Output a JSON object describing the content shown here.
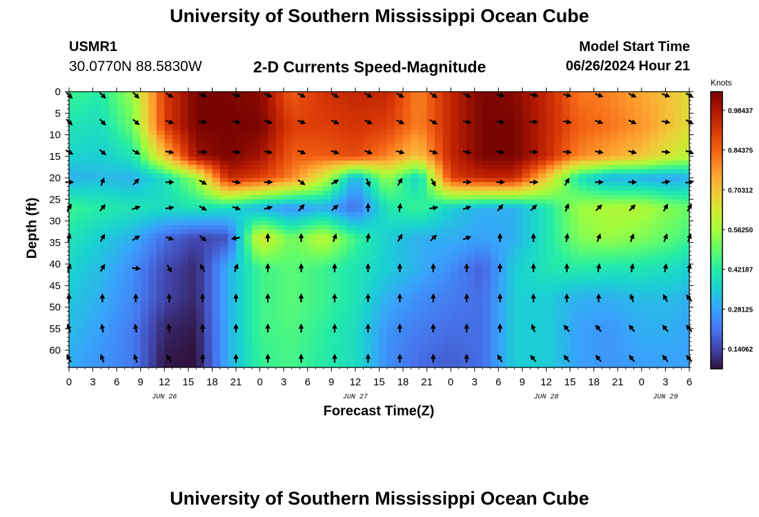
{
  "header": {
    "title": "University of Southern Mississippi Ocean Cube",
    "station": "USMR1",
    "coordinates": "30.0770N  88.5830W",
    "product": "2-D Currents Speed-Magnitude",
    "model_start_label": "Model Start Time",
    "model_start_value": "06/26/2024 Hour 21"
  },
  "footer": {
    "title": "University of Southern Mississippi Ocean Cube"
  },
  "chart_data": {
    "type": "heatmap",
    "title": "2-D Currents Speed-Magnitude",
    "xlabel": "Forecast Time(Z)",
    "ylabel": "Depth (ft)",
    "x_hours": [
      0,
      3,
      6,
      9,
      12,
      15,
      18,
      21,
      24,
      27,
      30,
      33,
      36,
      39,
      42,
      45,
      48,
      51,
      54,
      57,
      60,
      63,
      66,
      69,
      72,
      75,
      78
    ],
    "x_tick_labels": [
      "0",
      "3",
      "6",
      "9",
      "12",
      "15",
      "18",
      "21",
      "0",
      "3",
      "6",
      "9",
      "12",
      "15",
      "18",
      "21",
      "0",
      "3",
      "6",
      "9",
      "12",
      "15",
      "18",
      "21",
      "0",
      "3",
      "6"
    ],
    "date_labels": [
      {
        "hour": 12,
        "label": "JUN 26"
      },
      {
        "hour": 36,
        "label": "JUN 27"
      },
      {
        "hour": 60,
        "label": "JUN 28"
      },
      {
        "hour": 75,
        "label": "JUN 29"
      }
    ],
    "xlim": [
      0,
      78
    ],
    "y_ticks": [
      0,
      5,
      10,
      15,
      20,
      25,
      30,
      35,
      40,
      45,
      50,
      55,
      60
    ],
    "y_tick_labels": [
      "0",
      "5",
      "10",
      "15",
      "20",
      "25",
      "30",
      "35",
      "40",
      "45",
      "50",
      "55",
      "60"
    ],
    "ylim": [
      0,
      64
    ],
    "colorbar": {
      "title": "Knots",
      "min": 0.0703,
      "max": 1.05,
      "tick_values": [
        0.98437,
        0.84375,
        0.70312,
        0.5625,
        0.42187,
        0.28125,
        0.14062
      ],
      "tick_labels": [
        "0.98437",
        "0.84375",
        "0.70312",
        "0.56250",
        "0.42187",
        "0.28125",
        "0.14062"
      ],
      "colors": [
        "#30123b",
        "#4145ab",
        "#4675ed",
        "#39a2fc",
        "#1bcfd4",
        "#24eca6",
        "#61fc6c",
        "#a4fc3b",
        "#d1e834",
        "#f3c63a",
        "#fe9b2d",
        "#f36315",
        "#d93806",
        "#b11901",
        "#7a0402"
      ]
    },
    "depth_levels": [
      0,
      8,
      15,
      20,
      27,
      34,
      41,
      48,
      55,
      62
    ],
    "speed_control_hours": [
      0,
      4,
      8,
      12,
      16,
      20,
      24,
      28,
      32,
      36,
      40,
      44,
      48,
      52,
      56,
      60,
      64,
      68,
      72,
      76,
      78
    ],
    "speed_by_depth": {
      "0": [
        0.45,
        0.42,
        0.55,
        0.9,
        1.05,
        1.05,
        1.03,
        0.85,
        0.92,
        0.95,
        0.95,
        0.8,
        0.95,
        1.05,
        1.03,
        0.95,
        0.82,
        0.8,
        0.75,
        0.7,
        0.65
      ],
      "8": [
        0.4,
        0.38,
        0.5,
        0.9,
        1.05,
        1.05,
        1.05,
        0.9,
        0.9,
        0.92,
        0.9,
        0.8,
        0.95,
        1.05,
        1.05,
        0.95,
        0.85,
        0.82,
        0.78,
        0.7,
        0.65
      ],
      "15": [
        0.36,
        0.35,
        0.4,
        0.7,
        1.0,
        1.05,
        1.0,
        0.85,
        0.85,
        0.88,
        0.8,
        0.7,
        0.95,
        1.05,
        1.05,
        0.95,
        0.8,
        0.75,
        0.7,
        0.62,
        0.6
      ],
      "20": [
        0.3,
        0.32,
        0.3,
        0.38,
        0.55,
        0.95,
        0.9,
        0.8,
        0.62,
        0.3,
        0.55,
        0.35,
        0.9,
        0.95,
        0.95,
        0.7,
        0.4,
        0.3,
        0.3,
        0.28,
        0.3
      ],
      "27": [
        0.45,
        0.42,
        0.4,
        0.38,
        0.4,
        0.38,
        0.3,
        0.25,
        0.3,
        0.2,
        0.4,
        0.45,
        0.35,
        0.3,
        0.3,
        0.4,
        0.55,
        0.58,
        0.58,
        0.52,
        0.5
      ],
      "34": [
        0.4,
        0.35,
        0.3,
        0.2,
        0.14,
        0.16,
        0.65,
        0.5,
        0.6,
        0.45,
        0.35,
        0.3,
        0.3,
        0.28,
        0.3,
        0.4,
        0.52,
        0.55,
        0.52,
        0.48,
        0.45
      ],
      "41": [
        0.36,
        0.32,
        0.25,
        0.15,
        0.1,
        0.3,
        0.45,
        0.48,
        0.45,
        0.4,
        0.35,
        0.3,
        0.25,
        0.18,
        0.35,
        0.4,
        0.42,
        0.4,
        0.4,
        0.38,
        0.35
      ],
      "48": [
        0.34,
        0.3,
        0.24,
        0.14,
        0.1,
        0.3,
        0.45,
        0.48,
        0.45,
        0.4,
        0.3,
        0.25,
        0.22,
        0.2,
        0.35,
        0.35,
        0.3,
        0.3,
        0.32,
        0.32,
        0.3
      ],
      "55": [
        0.32,
        0.28,
        0.22,
        0.1,
        0.08,
        0.3,
        0.45,
        0.47,
        0.43,
        0.38,
        0.26,
        0.22,
        0.2,
        0.2,
        0.35,
        0.35,
        0.28,
        0.26,
        0.3,
        0.3,
        0.28
      ],
      "62": [
        0.3,
        0.26,
        0.22,
        0.08,
        0.07,
        0.3,
        0.44,
        0.46,
        0.42,
        0.38,
        0.25,
        0.2,
        0.18,
        0.2,
        0.35,
        0.35,
        0.28,
        0.26,
        0.28,
        0.28,
        0.28
      ]
    },
    "vector_hours": [
      0,
      4.2,
      8.4,
      12.6,
      16.8,
      21,
      25,
      29.2,
      33.4,
      37.6,
      41.6,
      45.8,
      50,
      54.2,
      58.4,
      62.6,
      66.6,
      70.8,
      75,
      78
    ],
    "vector_depths": [
      0,
      7,
      14,
      21,
      27,
      34,
      41,
      48,
      55,
      62
    ],
    "vector_direction_deg": {
      "0": [
        135,
        135,
        135,
        120,
        110,
        105,
        110,
        115,
        120,
        120,
        120,
        125,
        115,
        105,
        100,
        105,
        110,
        115,
        110,
        120
      ],
      "7": [
        135,
        135,
        130,
        110,
        95,
        95,
        105,
        110,
        115,
        115,
        115,
        120,
        100,
        95,
        95,
        100,
        110,
        115,
        100,
        120
      ],
      "14": [
        120,
        130,
        120,
        100,
        90,
        95,
        100,
        110,
        110,
        110,
        105,
        110,
        100,
        95,
        90,
        95,
        100,
        105,
        95,
        110
      ],
      "21": [
        90,
        20,
        45,
        90,
        120,
        100,
        90,
        125,
        60,
        160,
        30,
        150,
        90,
        90,
        90,
        30,
        90,
        90,
        80,
        80
      ],
      "27": [
        30,
        40,
        70,
        80,
        120,
        110,
        75,
        40,
        50,
        0,
        10,
        80,
        70,
        40,
        45,
        20,
        45,
        45,
        30,
        30
      ],
      "34": [
        10,
        30,
        60,
        110,
        130,
        260,
        0,
        0,
        20,
        10,
        30,
        45,
        70,
        0,
        0,
        10,
        20,
        20,
        20,
        20
      ],
      "41": [
        20,
        30,
        95,
        150,
        330,
        20,
        0,
        0,
        0,
        0,
        0,
        0,
        0,
        0,
        0,
        0,
        10,
        10,
        10,
        10
      ],
      "48": [
        0,
        0,
        0,
        0,
        0,
        0,
        0,
        0,
        0,
        0,
        0,
        0,
        0,
        0,
        0,
        0,
        0,
        340,
        330,
        320
      ],
      "55": [
        340,
        350,
        350,
        350,
        0,
        0,
        0,
        0,
        0,
        0,
        0,
        0,
        0,
        0,
        340,
        320,
        320,
        320,
        320,
        320
      ],
      "62": [
        330,
        340,
        340,
        330,
        0,
        0,
        0,
        0,
        0,
        0,
        0,
        0,
        0,
        330,
        320,
        320,
        320,
        320,
        320,
        320
      ]
    }
  }
}
